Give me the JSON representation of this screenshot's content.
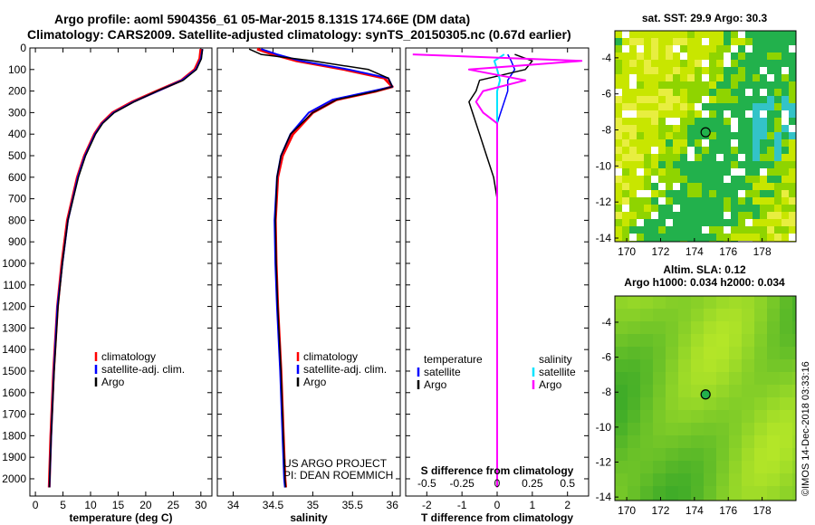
{
  "titles": {
    "line1": "Argo profile: aoml 5904356_61 05-Mar-2015 8.131S 174.66E (DM data)",
    "line2": "Climatology: CARS2009. Satellite-adjusted climatology: synTS_20150305.nc (0.67d earlier)"
  },
  "depth_ticks": [
    "0",
    "100",
    "200",
    "300",
    "400",
    "500",
    "600",
    "700",
    "800",
    "900",
    "1000",
    "1100",
    "1200",
    "1300",
    "1400",
    "1500",
    "1600",
    "1700",
    "1800",
    "1900",
    "2000"
  ],
  "colors": {
    "climatology": "#ff0000",
    "satellite": "#0000ff",
    "argo": "#000000",
    "salinity_sat": "#00e5ff",
    "salinity_argo": "#ff00ff"
  },
  "chart_data": [
    {
      "id": "temperature",
      "type": "line",
      "xlabel": "temperature (deg C)",
      "ylabel": "",
      "xlim": [
        -1,
        32
      ],
      "ylim": [
        2080,
        0
      ],
      "xticks": [
        "0",
        "5",
        "10",
        "15",
        "20",
        "25",
        "30"
      ],
      "legend": [
        "climatology",
        "satellite-adj. clim.",
        "Argo"
      ],
      "depth": [
        5,
        50,
        100,
        150,
        200,
        250,
        300,
        350,
        400,
        500,
        600,
        800,
        1000,
        1200,
        1500,
        1800,
        2000,
        2040
      ],
      "series": [
        {
          "name": "climatology",
          "values": [
            30.0,
            29.8,
            28.9,
            26.5,
            22.0,
            17.6,
            14.0,
            12.0,
            10.7,
            8.9,
            7.6,
            5.8,
            4.8,
            4.0,
            3.3,
            2.8,
            2.55,
            2.5
          ]
        },
        {
          "name": "satellite-adj. clim.",
          "values": [
            30.3,
            30.0,
            29.1,
            26.6,
            22.2,
            17.8,
            14.2,
            12.1,
            10.8,
            9.0,
            7.7,
            5.9,
            4.9,
            4.0,
            3.35,
            2.85,
            2.6,
            2.55
          ]
        },
        {
          "name": "Argo",
          "values": [
            30.3,
            30.1,
            29.2,
            26.8,
            22.1,
            17.9,
            14.3,
            12.2,
            10.9,
            9.1,
            7.8,
            5.9,
            4.9,
            4.1,
            3.4,
            2.85,
            2.6,
            2.55
          ]
        }
      ]
    },
    {
      "id": "salinity",
      "type": "line",
      "xlabel": "salinity",
      "ylabel": "",
      "xlim": [
        33.8,
        36.1
      ],
      "ylim": [
        2080,
        0
      ],
      "xticks": [
        "34",
        "34.5",
        "35",
        "35.5",
        "36"
      ],
      "legend": [
        "climatology",
        "satellite-adj. clim.",
        "Argo"
      ],
      "footer": [
        "US ARGO PROJECT",
        "PI: DEAN ROEMMICH"
      ],
      "depth": [
        5,
        30,
        60,
        100,
        140,
        180,
        200,
        240,
        300,
        400,
        500,
        600,
        800,
        1000,
        1200,
        1500,
        1800,
        2000,
        2040
      ],
      "series": [
        {
          "name": "climatology",
          "values": [
            34.3,
            34.5,
            34.8,
            35.4,
            35.9,
            36.0,
            35.8,
            35.3,
            35.0,
            34.75,
            34.62,
            34.56,
            34.53,
            34.54,
            34.56,
            34.6,
            34.63,
            34.65,
            34.66
          ]
        },
        {
          "name": "satellite-adj. clim.",
          "values": [
            34.35,
            34.55,
            34.85,
            35.45,
            35.95,
            36.0,
            35.75,
            35.25,
            34.95,
            34.72,
            34.6,
            34.55,
            34.52,
            34.53,
            34.55,
            34.59,
            34.62,
            34.64,
            34.65
          ]
        },
        {
          "name": "Argo",
          "values": [
            34.2,
            34.35,
            35.0,
            35.7,
            35.95,
            36.0,
            35.8,
            35.3,
            35.0,
            34.72,
            34.6,
            34.55,
            34.53,
            34.54,
            34.56,
            34.6,
            34.63,
            34.65,
            34.66
          ]
        }
      ]
    },
    {
      "id": "difference",
      "type": "line",
      "xlabel": "T difference from climatology",
      "top_label": "S difference from climatology",
      "xlim": [
        -2.6,
        2.6
      ],
      "ylim": [
        2080,
        0
      ],
      "xticks": [
        "-2",
        "-1",
        "0",
        "1",
        "2"
      ],
      "sticks": [
        "-0.5",
        "-0.25",
        "0",
        "0.25",
        "0.5"
      ],
      "legend_left_title": "temperature",
      "legend_right_title": "salinity",
      "legend_left": [
        "satellite",
        "Argo"
      ],
      "legend_right": [
        "satellite",
        "Argo"
      ],
      "depth": [
        30,
        60,
        100,
        150,
        200,
        250,
        300,
        350,
        400,
        500,
        600,
        700,
        800,
        1000,
        1200,
        1500,
        2000,
        2040
      ],
      "series": [
        {
          "name": "temperature satellite",
          "values": [
            0.3,
            0.4,
            0.5,
            0.3,
            0.3,
            0.2,
            0.1,
            0.0,
            0.0,
            0.0,
            0.0,
            0.0,
            0.0,
            0.0,
            0.0,
            0.0,
            0.0,
            0.0
          ]
        },
        {
          "name": "temperature Argo",
          "values": [
            0.5,
            1.0,
            0.8,
            -0.5,
            -0.6,
            -0.8,
            -0.7,
            -0.6,
            -0.5,
            -0.3,
            -0.1,
            0.0,
            0.0,
            0.0,
            0.0,
            0.0,
            0.0,
            0.0
          ]
        },
        {
          "name": "salinity satellite",
          "values": [
            0.05,
            -0.02,
            0.0,
            0.02,
            0.0,
            0.0,
            0.0,
            0.0,
            0.0,
            0.0,
            0.0,
            0.0,
            0.0,
            0.0,
            0.0,
            0.0,
            0.0,
            0.0
          ]
        },
        {
          "name": "salinity Argo",
          "values": [
            -0.6,
            0.6,
            -0.2,
            0.2,
            -0.1,
            -0.15,
            -0.1,
            0.0,
            0.0,
            0.0,
            0.0,
            0.0,
            0.0,
            0.0,
            0.0,
            0.0,
            0.0,
            0.0
          ]
        }
      ]
    },
    {
      "id": "sst_map",
      "type": "heatmap",
      "title": "sat. SST: 29.9 Argo: 30.3",
      "xticks": [
        "170",
        "172",
        "174",
        "176",
        "178"
      ],
      "yticks": [
        "-4",
        "-6",
        "-8",
        "-10",
        "-12",
        "-14"
      ],
      "xlim": [
        169.3,
        180.0
      ],
      "ylim": [
        -14.2,
        -2.5
      ],
      "marker": [
        174.66,
        -8.131
      ]
    },
    {
      "id": "sla_map",
      "type": "heatmap",
      "title": "Altim. SLA: 0.12",
      "subtitle": "Argo h1000: 0.034 h2000: 0.034",
      "xticks": [
        "170",
        "172",
        "174",
        "176",
        "178"
      ],
      "yticks": [
        "-4",
        "-6",
        "-8",
        "-10",
        "-12",
        "-14"
      ],
      "xlim": [
        169.3,
        180.0
      ],
      "ylim": [
        -14.2,
        -2.5
      ],
      "marker": [
        174.66,
        -8.131
      ]
    }
  ],
  "credit": "©IMOS 14-Dec-2018 03:33:16"
}
